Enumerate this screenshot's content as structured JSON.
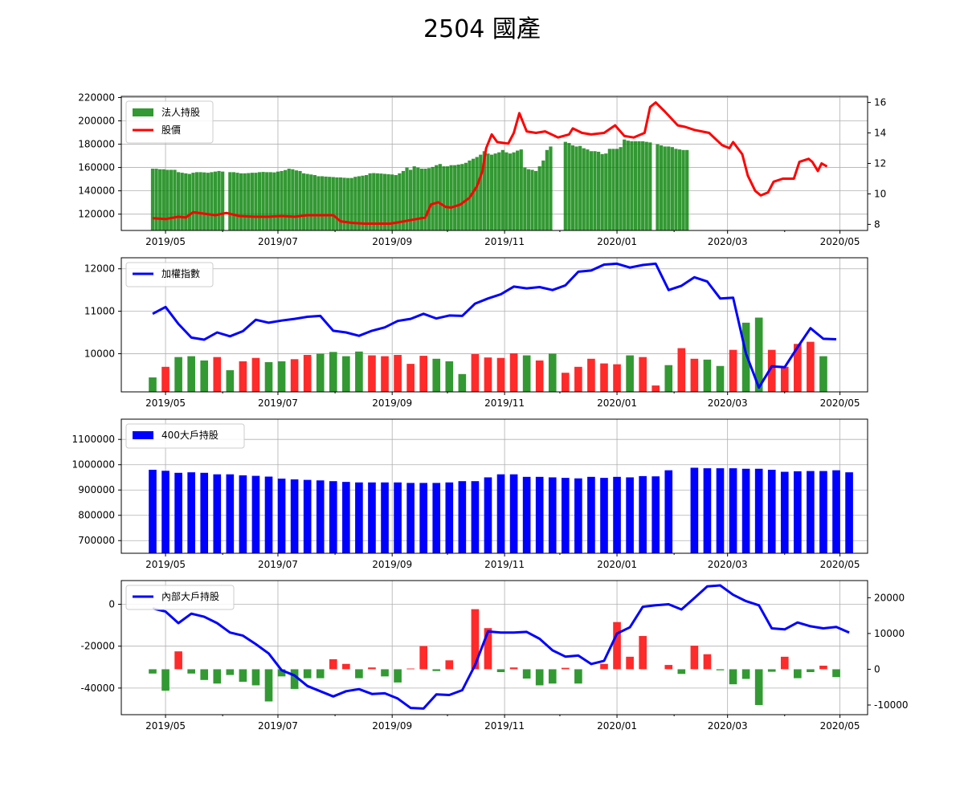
{
  "figure": {
    "title": "2504 國產",
    "x_tick_labels": [
      "2019/05",
      "2019/07",
      "2019/09",
      "2019/11",
      "2020/01",
      "2020/03",
      "2020/05"
    ]
  },
  "chart_data": [
    {
      "panel": "institutional_holdings_and_price",
      "type": "bar",
      "dual_axis": true,
      "legend": {
        "placement": "top-left",
        "entries": [
          "法人持股",
          "股價"
        ]
      },
      "xlim": [
        "2019-04-07",
        "2020-05-16"
      ],
      "ylim": [
        106000,
        221000
      ],
      "ylim_right": [
        7.6,
        16.4
      ],
      "yticks": [
        120000,
        140000,
        160000,
        180000,
        200000,
        220000
      ],
      "yticks_right": [
        8,
        10,
        12,
        14,
        16
      ],
      "grid": true,
      "bar_color": "#008000",
      "line_color": "#ff0000",
      "start_date": "2019-04-24",
      "series": [
        {
          "name": "法人持股",
          "kind": "bar",
          "axis": "left",
          "step_days": 2,
          "values": [
            159000,
            159000,
            158500,
            158500,
            158000,
            158000,
            158000,
            156000,
            155500,
            155000,
            154500,
            155500,
            156000,
            156000,
            155800,
            155500,
            156000,
            156500,
            157000,
            156500,
            null,
            156000,
            156000,
            155500,
            155000,
            155000,
            155200,
            155500,
            155500,
            156000,
            156200,
            156000,
            156000,
            155800,
            156500,
            157000,
            157800,
            159000,
            158500,
            157500,
            157000,
            155000,
            154500,
            154000,
            153500,
            152500,
            152500,
            152200,
            152000,
            151800,
            151500,
            151500,
            151200,
            151000,
            151000,
            152000,
            152500,
            153000,
            153500,
            155000,
            155200,
            155000,
            154800,
            154500,
            154200,
            154000,
            153500,
            155000,
            157000,
            160000,
            158000,
            161000,
            160000,
            159000,
            159000,
            159500,
            160500,
            162000,
            163000,
            161000,
            161000,
            162000,
            162000,
            162500,
            163000,
            164000,
            166000,
            167500,
            169000,
            171000,
            174000,
            172000,
            171000,
            172000,
            173000,
            175000,
            173000,
            172000,
            173000,
            174500,
            175500,
            160000,
            158500,
            158000,
            157000,
            161000,
            166000,
            175000,
            178000,
            null,
            null,
            null,
            182000,
            181000,
            179000,
            178000,
            178500,
            176500,
            175500,
            174000,
            174000,
            173500,
            171500,
            172000,
            176000,
            176000,
            176000,
            177500,
            184000,
            183000,
            182500,
            182500,
            182500,
            182500,
            182000,
            181500,
            null,
            180000,
            179000,
            178000,
            178000,
            177500,
            176000,
            175500,
            175000,
            175000
          ]
        },
        {
          "name": "股價",
          "kind": "line",
          "axis": "right",
          "points": [
            [
              "2019-04-24",
              8.4
            ],
            [
              "2019-05-01",
              8.35
            ],
            [
              "2019-05-08",
              8.5
            ],
            [
              "2019-05-12",
              8.45
            ],
            [
              "2019-05-16",
              8.8
            ],
            [
              "2019-05-22",
              8.7
            ],
            [
              "2019-05-28",
              8.6
            ],
            [
              "2019-06-03",
              8.75
            ],
            [
              "2019-06-10",
              8.55
            ],
            [
              "2019-06-18",
              8.5
            ],
            [
              "2019-06-26",
              8.5
            ],
            [
              "2019-07-03",
              8.55
            ],
            [
              "2019-07-10",
              8.5
            ],
            [
              "2019-07-17",
              8.6
            ],
            [
              "2019-07-24",
              8.6
            ],
            [
              "2019-07-31",
              8.6
            ],
            [
              "2019-08-04",
              8.2
            ],
            [
              "2019-08-10",
              8.1
            ],
            [
              "2019-08-17",
              8.05
            ],
            [
              "2019-08-24",
              8.05
            ],
            [
              "2019-08-31",
              8.05
            ],
            [
              "2019-09-05",
              8.15
            ],
            [
              "2019-09-12",
              8.3
            ],
            [
              "2019-09-19",
              8.45
            ],
            [
              "2019-09-22",
              9.3
            ],
            [
              "2019-09-26",
              9.45
            ],
            [
              "2019-09-30",
              9.15
            ],
            [
              "2019-10-03",
              9.1
            ],
            [
              "2019-10-08",
              9.3
            ],
            [
              "2019-10-13",
              9.75
            ],
            [
              "2019-10-17",
              10.5
            ],
            [
              "2019-10-20",
              11.5
            ],
            [
              "2019-10-22",
              13.0
            ],
            [
              "2019-10-25",
              13.9
            ],
            [
              "2019-10-28",
              13.4
            ],
            [
              "2019-11-03",
              13.3
            ],
            [
              "2019-11-06",
              14.0
            ],
            [
              "2019-11-09",
              15.3
            ],
            [
              "2019-11-13",
              14.1
            ],
            [
              "2019-11-18",
              14.0
            ],
            [
              "2019-11-23",
              14.1
            ],
            [
              "2019-11-30",
              13.7
            ],
            [
              "2019-12-06",
              13.9
            ],
            [
              "2019-12-08",
              14.3
            ],
            [
              "2019-12-13",
              14.0
            ],
            [
              "2019-12-18",
              13.9
            ],
            [
              "2019-12-25",
              14.0
            ],
            [
              "2019-12-31",
              14.5
            ],
            [
              "2020-01-05",
              13.8
            ],
            [
              "2020-01-10",
              13.7
            ],
            [
              "2020-01-16",
              14.0
            ],
            [
              "2020-01-19",
              15.7
            ],
            [
              "2020-01-22",
              16.0
            ],
            [
              "2020-01-27",
              15.4
            ],
            [
              "2020-02-03",
              14.5
            ],
            [
              "2020-02-07",
              14.4
            ],
            [
              "2020-02-12",
              14.2
            ],
            [
              "2020-02-20",
              14.0
            ],
            [
              "2020-02-27",
              13.2
            ],
            [
              "2020-03-02",
              13.0
            ],
            [
              "2020-03-04",
              13.4
            ],
            [
              "2020-03-09",
              12.6
            ],
            [
              "2020-03-12",
              11.2
            ],
            [
              "2020-03-16",
              10.2
            ],
            [
              "2020-03-19",
              9.9
            ],
            [
              "2020-03-23",
              10.1
            ],
            [
              "2020-03-26",
              10.8
            ],
            [
              "2020-03-31",
              11.0
            ],
            [
              "2020-04-06",
              11.0
            ],
            [
              "2020-04-09",
              12.1
            ],
            [
              "2020-04-14",
              12.3
            ],
            [
              "2020-04-16",
              12.1
            ],
            [
              "2020-04-19",
              11.5
            ],
            [
              "2020-04-21",
              12.0
            ],
            [
              "2020-04-24",
              11.8
            ]
          ]
        }
      ]
    },
    {
      "panel": "index_and_weekly_change",
      "type": "line",
      "legend": {
        "placement": "top-left",
        "entries": [
          "加權指數"
        ]
      },
      "xlim": [
        "2019-04-07",
        "2020-05-16"
      ],
      "ylim": [
        9100,
        12260
      ],
      "yticks": [
        10000,
        11000,
        12000
      ],
      "grid": true,
      "bar_baseline": 9100,
      "bar_colors": {
        "up": "#ff2a2a",
        "down": "#339933"
      },
      "week_start": "2019-04-24",
      "week_step_days": 7,
      "series": [
        {
          "name": "加權指數",
          "kind": "line",
          "color": "#0000ff",
          "values": [
            10940,
            11100,
            10700,
            10380,
            10330,
            10500,
            10410,
            10530,
            10800,
            10730,
            10780,
            10820,
            10870,
            10890,
            10540,
            10500,
            10420,
            10540,
            10620,
            10770,
            10820,
            10940,
            10830,
            10900,
            10890,
            11180,
            11300,
            11400,
            11580,
            11540,
            11570,
            11500,
            11610,
            11930,
            11960,
            12100,
            12120,
            12030,
            12090,
            12120,
            11500,
            11600,
            11800,
            11700,
            11300,
            11320,
            10000,
            9200,
            9700,
            9680,
            10150,
            10600,
            10350,
            10340
          ]
        },
        {
          "name": "",
          "kind": "bar",
          "values": [
            9440,
            9690,
            9920,
            9940,
            9840,
            9920,
            9610,
            9820,
            9900,
            9800,
            9820,
            9870,
            9970,
            10000,
            10040,
            9940,
            10050,
            9960,
            9940,
            9970,
            9760,
            9950,
            9880,
            9820,
            9520,
            9990,
            9910,
            9900,
            10010,
            9960,
            9840,
            10000,
            9550,
            9690,
            9880,
            9770,
            9750,
            9960,
            9920,
            9250,
            9730,
            10130,
            9880,
            9860,
            9710,
            10090,
            10730,
            10850,
            10090,
            9690,
            10230,
            10280,
            9940,
            null
          ],
          "colors": [
            "down",
            "up",
            "down",
            "down",
            "down",
            "up",
            "down",
            "up",
            "up",
            "down",
            "down",
            "up",
            "up",
            "down",
            "down",
            "down",
            "down",
            "up",
            "up",
            "up",
            "up",
            "up",
            "down",
            "down",
            "down",
            "up",
            "up",
            "up",
            "up",
            "down",
            "up",
            "down",
            "up",
            "up",
            "up",
            "up",
            "up",
            "down",
            "up",
            "up",
            "down",
            "up",
            "up",
            "down",
            "down",
            "up",
            "down",
            "down",
            "up",
            "up",
            "up",
            "up",
            "down",
            null
          ]
        }
      ]
    },
    {
      "panel": "holders_over_400",
      "type": "bar",
      "legend": {
        "placement": "top-left",
        "entries": [
          "400大戶持股"
        ]
      },
      "xlim": [
        "2019-04-07",
        "2020-05-16"
      ],
      "ylim": [
        650000,
        1180000
      ],
      "yticks": [
        700000,
        800000,
        900000,
        1000000,
        1100000
      ],
      "grid": true,
      "week_start": "2019-04-24",
      "week_step_days": 7,
      "series": [
        {
          "name": "400大戶持股",
          "color": "#0000ff",
          "values": [
            980000,
            976000,
            968000,
            970000,
            968000,
            962000,
            962000,
            958000,
            956000,
            953000,
            945000,
            942000,
            940000,
            938000,
            935000,
            932000,
            930000,
            930000,
            930000,
            930000,
            928000,
            928000,
            928000,
            930000,
            935000,
            935000,
            950000,
            962000,
            962000,
            952000,
            952000,
            950000,
            948000,
            946000,
            952000,
            948000,
            952000,
            950000,
            955000,
            954000,
            978000,
            null,
            988000,
            986000,
            986000,
            986000,
            984000,
            984000,
            980000,
            972000,
            974000,
            975000,
            975000,
            978000,
            970000
          ]
        }
      ]
    },
    {
      "panel": "insider_holders",
      "type": "bar",
      "dual_axis": true,
      "legend": {
        "placement": "top-left",
        "entries": [
          "內部大戶持股"
        ]
      },
      "xlim": [
        "2019-04-07",
        "2020-05-16"
      ],
      "ylim": [
        -52700,
        11300
      ],
      "ylim_right": [
        -12700,
        24800
      ],
      "yticks": [
        0,
        -20000,
        -40000
      ],
      "yticks_right": [
        -10000,
        0,
        10000,
        20000
      ],
      "grid": true,
      "bar_colors": {
        "up": "#ff2a2a",
        "down": "#339933"
      },
      "week_start": "2019-04-24",
      "week_step_days": 7,
      "series": [
        {
          "name": "內部大戶持股",
          "kind": "line",
          "axis": "left",
          "color": "#0000ff",
          "values": [
            -2000,
            -3500,
            -9000,
            -4500,
            -6000,
            -9000,
            -13500,
            -15000,
            -19000,
            -23500,
            -31500,
            -34000,
            -39000,
            -41500,
            -44000,
            -41500,
            -40500,
            -42800,
            -42500,
            -45000,
            -49500,
            -49800,
            -43000,
            -43300,
            -41000,
            -29000,
            -13000,
            -13500,
            -13500,
            -13200,
            -16500,
            -22000,
            -25000,
            -24500,
            -28500,
            -27000,
            -14000,
            -11000,
            -1200,
            -500,
            0,
            -2500,
            3000,
            8500,
            9000,
            4500,
            1500,
            -500,
            -11500,
            -12000,
            -8700,
            -10500,
            -11500,
            -10800,
            -13500
          ]
        },
        {
          "name": "",
          "kind": "bar",
          "axis": "right",
          "values": [
            -1200,
            -6000,
            5000,
            -1200,
            -3000,
            -4000,
            -1600,
            -3500,
            -4500,
            -9000,
            -2000,
            -5500,
            -2500,
            -2500,
            2800,
            1500,
            -2500,
            500,
            -2000,
            -3700,
            200,
            6500,
            -500,
            2500,
            0,
            16800,
            11500,
            -800,
            500,
            -2600,
            -4500,
            -4000,
            400,
            -4000,
            0,
            1500,
            13200,
            3500,
            9300,
            null,
            1200,
            -1300,
            6600,
            4200,
            -300,
            -4200,
            -2700,
            -10000,
            -700,
            3500,
            -2500,
            -800,
            1000,
            -2200
          ],
          "colors": [
            "down",
            "down",
            "up",
            "down",
            "down",
            "down",
            "down",
            "down",
            "down",
            "down",
            "down",
            "down",
            "down",
            "down",
            "up",
            "up",
            "down",
            "up",
            "down",
            "down",
            "up",
            "up",
            "down",
            "up",
            "up",
            "up",
            "up",
            "down",
            "up",
            "down",
            "down",
            "down",
            "up",
            "down",
            "down",
            "up",
            "up",
            "up",
            "up",
            null,
            "up",
            "down",
            "up",
            "up",
            "down",
            "down",
            "down",
            "down",
            "down",
            "up",
            "down",
            "down",
            "up",
            "down"
          ]
        }
      ]
    }
  ]
}
